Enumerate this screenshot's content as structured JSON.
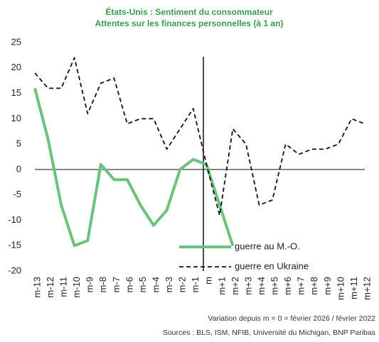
{
  "chart_data": {
    "type": "line",
    "title": "États-Unis : Sentiment du consommateur",
    "subtitle": "Attentes sur les finances personnelles (à 1 an)",
    "categories": [
      "m-13",
      "m-12",
      "m-11",
      "m-10",
      "m-9",
      "m-8",
      "m-7",
      "m-6",
      "m-5",
      "m-4",
      "m-3",
      "m-2",
      "m-1",
      "m",
      "m+1",
      "m+2",
      "m+3",
      "m+4",
      "m+5",
      "m+6",
      "m+7",
      "m+8",
      "m+9",
      "m+10",
      "m+11",
      "m+12"
    ],
    "series": [
      {
        "name": "guerre au M.-O.",
        "color": "#6cc27a",
        "dash": false,
        "values": [
          16,
          6,
          -7,
          -15,
          -14,
          1,
          -2,
          -2,
          -7,
          -11,
          -8,
          0,
          2,
          1,
          -7,
          -15,
          null,
          null,
          null,
          null,
          null,
          null,
          null,
          null,
          null,
          null
        ]
      },
      {
        "name": "guerre en Ukraine",
        "color": "#111111",
        "dash": true,
        "values": [
          19,
          16,
          16,
          22,
          11,
          17,
          18,
          9,
          10,
          10,
          4,
          8,
          12,
          1,
          -9,
          8,
          5,
          -7,
          -6,
          5,
          3,
          4,
          4,
          5,
          10,
          9
        ]
      }
    ],
    "ylim": [
      -20,
      25
    ],
    "yticks": [
      -20,
      -15,
      -10,
      -5,
      0,
      5,
      10,
      15,
      20,
      25
    ],
    "notes": [
      "Variation depuis m = 0 = février 2026 / février 2022",
      "Sources : BLS, ISM, NFIB, Université du Michigan, BNP Paribas"
    ]
  }
}
